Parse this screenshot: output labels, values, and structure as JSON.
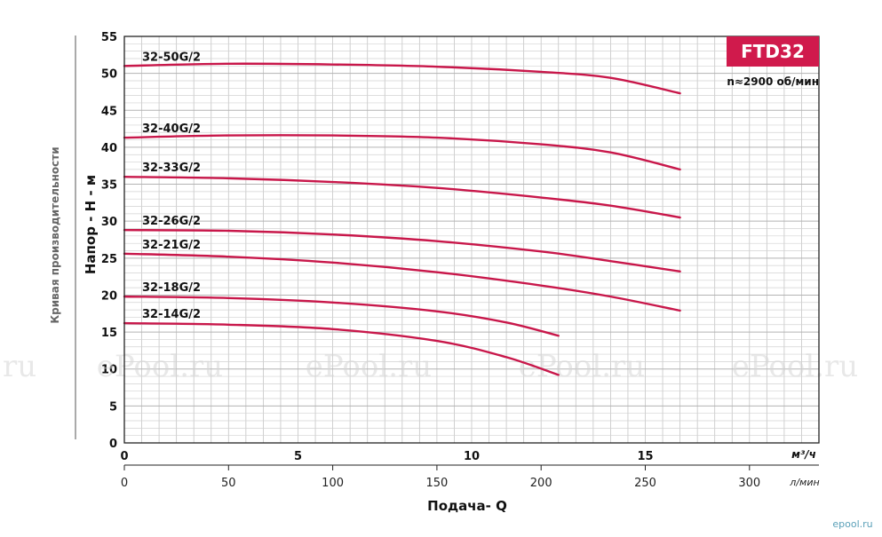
{
  "chart_data": {
    "type": "line",
    "title": "",
    "model_badge": "FTD32",
    "speed_note": "n≈2900 об/мин",
    "side_label": "Кривая производительности",
    "ylabel": "Напор - H - м",
    "xlabel": "Подача- Q",
    "x_unit_primary": "м³/ч",
    "x_unit_secondary": "л/мин",
    "xlim": [
      0,
      20
    ],
    "ylim": [
      0,
      55
    ],
    "grid": true,
    "y_ticks": [
      "0",
      "5",
      "10",
      "15",
      "20",
      "25",
      "30",
      "35",
      "40",
      "45",
      "50",
      "55"
    ],
    "x_ticks_primary": [
      "0",
      "5",
      "10",
      "15"
    ],
    "x_ticks_secondary": [
      "0",
      "50",
      "100",
      "150",
      "200",
      "250",
      "300"
    ],
    "series_color": "#c8174a",
    "series": [
      {
        "name": "32-50G/2",
        "x": [
          0,
          3,
          6,
          9,
          12,
          14,
          16.0
        ],
        "y": [
          51.0,
          51.3,
          51.2,
          50.9,
          50.2,
          49.4,
          47.3
        ]
      },
      {
        "name": "32-40G/2",
        "x": [
          0,
          3,
          6,
          9,
          12,
          14,
          16.0
        ],
        "y": [
          41.3,
          41.6,
          41.6,
          41.3,
          40.4,
          39.3,
          37.0
        ]
      },
      {
        "name": "32-33G/2",
        "x": [
          0,
          3,
          6,
          9,
          12,
          14,
          16.0
        ],
        "y": [
          36.0,
          35.8,
          35.3,
          34.5,
          33.2,
          32.1,
          30.5
        ]
      },
      {
        "name": "32-26G/2",
        "x": [
          0,
          3,
          6,
          9,
          12,
          14,
          16.0
        ],
        "y": [
          28.8,
          28.7,
          28.2,
          27.3,
          25.9,
          24.6,
          23.2
        ]
      },
      {
        "name": "32-21G/2",
        "x": [
          0,
          3,
          6,
          9,
          12,
          14,
          16.0
        ],
        "y": [
          25.6,
          25.2,
          24.4,
          23.1,
          21.3,
          19.8,
          17.9
        ]
      },
      {
        "name": "32-18G/2",
        "x": [
          0,
          3,
          6,
          9,
          11,
          12.5
        ],
        "y": [
          19.8,
          19.6,
          19.0,
          17.8,
          16.3,
          14.5
        ]
      },
      {
        "name": "32-14G/2",
        "x": [
          0,
          3,
          6,
          9,
          11,
          12.5
        ],
        "y": [
          16.2,
          16.0,
          15.4,
          13.8,
          11.6,
          9.2
        ]
      }
    ]
  },
  "watermarks": [
    "ePool.ru",
    "ePool.ru",
    "ePool.ru",
    "ePool.ru",
    "ePool.ru"
  ],
  "corner_logo": "epool.ru"
}
